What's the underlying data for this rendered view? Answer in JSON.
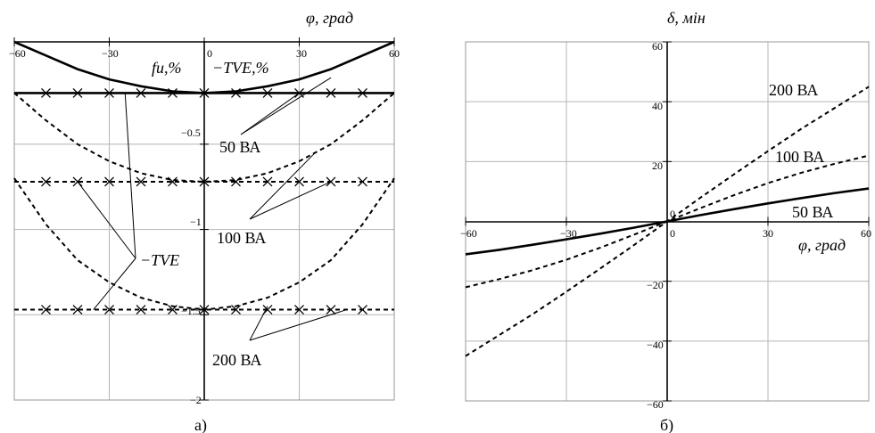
{
  "chart_data": [
    {
      "type": "line",
      "panel_label": "а)",
      "x_axis_title": "φ, град",
      "y_axis_title": "fu,%",
      "y_axis_title_2": "−TVE,%",
      "x_tick_labels": [
        "−60",
        "−30",
        "0",
        "30",
        "60"
      ],
      "y_tick_labels": [
        "−0.5",
        "−1",
        "−1.5",
        "−2"
      ],
      "xlim": [
        -60,
        60
      ],
      "ylim": [
        -2,
        0.1
      ],
      "x": [
        -60,
        -50,
        -40,
        -30,
        -20,
        -10,
        0,
        10,
        20,
        30,
        40,
        50,
        60
      ],
      "series": [
        {
          "key": "tve50",
          "style": "solid",
          "values": [
            0.1,
            0.02,
            -0.06,
            -0.12,
            -0.16,
            -0.19,
            -0.2,
            -0.19,
            -0.16,
            -0.12,
            -0.06,
            0.02,
            0.1
          ]
        },
        {
          "key": "fu50",
          "style": "solid-x",
          "values": [
            -0.2,
            -0.2,
            -0.2,
            -0.2,
            -0.2,
            -0.2,
            -0.2,
            -0.2,
            -0.2,
            -0.2,
            -0.2,
            -0.2,
            -0.2
          ]
        },
        {
          "key": "tve100",
          "style": "dashed",
          "values": [
            -0.2,
            -0.36,
            -0.5,
            -0.6,
            -0.67,
            -0.71,
            -0.72,
            -0.71,
            -0.67,
            -0.6,
            -0.5,
            -0.36,
            -0.2
          ]
        },
        {
          "key": "fu100",
          "style": "dashed-x",
          "values": [
            -0.72,
            -0.72,
            -0.72,
            -0.72,
            -0.72,
            -0.72,
            -0.72,
            -0.72,
            -0.72,
            -0.72,
            -0.72,
            -0.72,
            -0.72
          ]
        },
        {
          "key": "tve200",
          "style": "dashed",
          "values": [
            -0.7,
            -0.97,
            -1.18,
            -1.31,
            -1.4,
            -1.45,
            -1.47,
            -1.45,
            -1.4,
            -1.31,
            -1.18,
            -0.97,
            -0.7
          ]
        },
        {
          "key": "fu200",
          "style": "dashed-x",
          "values": [
            -1.47,
            -1.47,
            -1.47,
            -1.47,
            -1.47,
            -1.47,
            -1.47,
            -1.47,
            -1.47,
            -1.47,
            -1.47,
            -1.47,
            -1.47
          ]
        }
      ],
      "annotations": [
        "50 ВА",
        "100 ВА",
        "200 ВА",
        "−TVE"
      ]
    },
    {
      "type": "line",
      "panel_label": "б)",
      "x_axis_title": "φ, град",
      "y_axis_title": "δ, мін",
      "x_tick_labels": [
        "−60",
        "−30",
        "0",
        "30",
        "60"
      ],
      "y_tick_labels": [
        "60",
        "40",
        "20",
        "0",
        "−20",
        "−40",
        "−60"
      ],
      "xlim": [
        -60,
        60
      ],
      "ylim": [
        -60,
        60
      ],
      "x": [
        -60,
        -50,
        -40,
        -30,
        -20,
        -10,
        0,
        10,
        20,
        30,
        40,
        50,
        60
      ],
      "series": [
        {
          "name": "50 ВА",
          "style": "solid",
          "values": [
            -11,
            -9.5,
            -7.8,
            -6,
            -4.1,
            -2.1,
            0,
            2.1,
            4.1,
            6,
            7.8,
            9.5,
            11
          ]
        },
        {
          "name": "100 ВА",
          "style": "dashed",
          "values": [
            -22,
            -19.3,
            -16.3,
            -12.8,
            -8.8,
            -4.5,
            0,
            4.5,
            8.8,
            12.8,
            16.3,
            19.3,
            22
          ]
        },
        {
          "name": "200 ВА",
          "style": "dashed",
          "values": [
            -45,
            -38,
            -31,
            -23.5,
            -15.8,
            -8,
            0,
            8,
            15.8,
            23.5,
            31,
            38,
            45
          ]
        }
      ]
    }
  ]
}
